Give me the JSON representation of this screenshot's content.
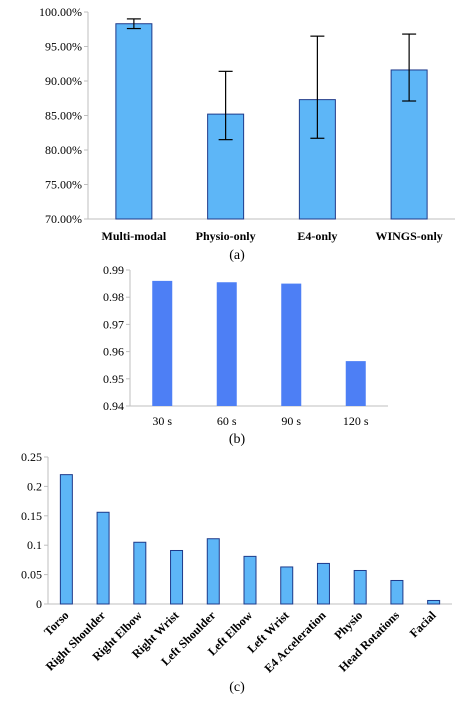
{
  "chart_data": [
    {
      "type": "bar",
      "caption": "(a)",
      "categories": [
        "Multi-modal",
        "Physio-only",
        "E4-only",
        "WINGS-only"
      ],
      "values": [
        98.3,
        85.2,
        87.3,
        91.6
      ],
      "error_low": [
        97.6,
        81.5,
        81.7,
        87.1
      ],
      "error_high": [
        99.0,
        91.4,
        96.5,
        96.8
      ],
      "yticks": [
        "70.00%",
        "75.00%",
        "80.00%",
        "85.00%",
        "90.00%",
        "95.00%",
        "100.00%"
      ],
      "ylim": [
        70,
        100
      ],
      "bar_color": "#5db6f7",
      "bar_edge": "#1f3a8a",
      "grid": false
    },
    {
      "type": "bar",
      "caption": "(b)",
      "categories": [
        "30 s",
        "60 s",
        "90 s",
        "120 s"
      ],
      "values": [
        0.986,
        0.9855,
        0.985,
        0.9565
      ],
      "yticks": [
        "0.94",
        "0.95",
        "0.96",
        "0.97",
        "0.98",
        "0.99"
      ],
      "ylim": [
        0.94,
        0.99
      ],
      "bar_color": "#4d7ff5",
      "grid": false
    },
    {
      "type": "bar",
      "caption": "(c)",
      "categories": [
        "Torso",
        "Right Shoulder",
        "Right Elbow",
        "Right Wrist",
        "Left Shoulder",
        "Left Elbow",
        "Left Wrist",
        "E4 Acceleration",
        "Physio",
        "Head Rotations",
        "Facial"
      ],
      "values": [
        0.22,
        0.156,
        0.105,
        0.091,
        0.111,
        0.081,
        0.063,
        0.069,
        0.057,
        0.04,
        0.006
      ],
      "yticks": [
        "0",
        "0.05",
        "0.1",
        "0.15",
        "0.2",
        "0.25"
      ],
      "ylim": [
        0,
        0.25
      ],
      "bar_color": "#5db6f7",
      "bar_edge": "#1f3a8a",
      "grid": false
    }
  ]
}
